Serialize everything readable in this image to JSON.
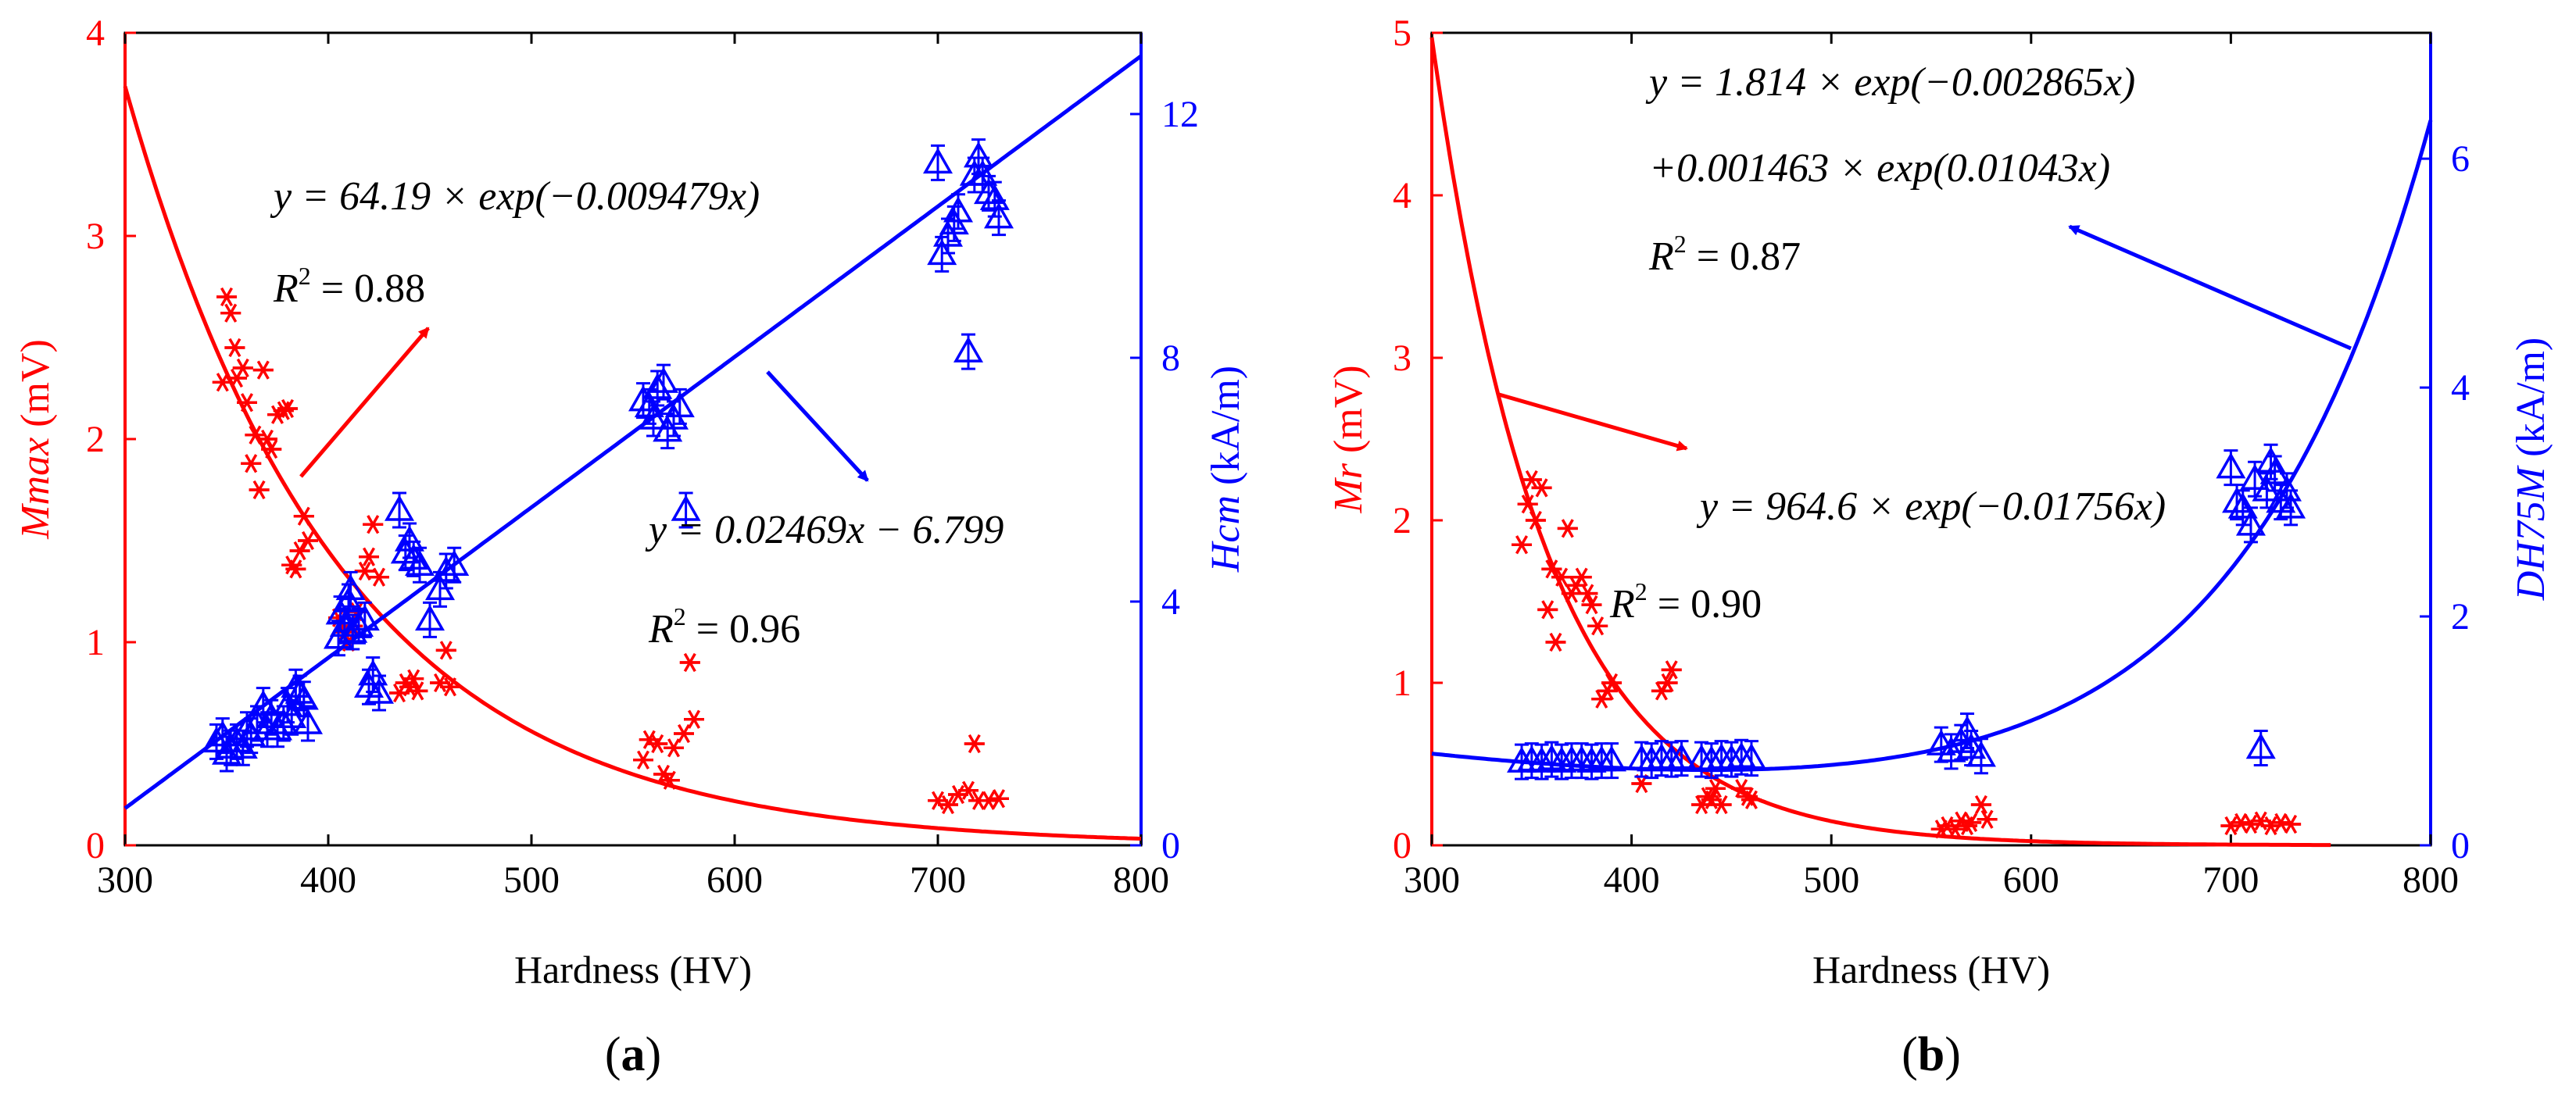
{
  "colors": {
    "red": "#ff0000",
    "blue": "#0000ff",
    "axis": "#000000"
  },
  "chart_data": [
    {
      "type": "scatter",
      "panel_label": {
        "open": "(",
        "letter": "a",
        "close": ")"
      },
      "xlabel": "Hardness (HV)",
      "ylabel_left": {
        "var": "Mmax",
        "unit": " (mV)"
      },
      "ylabel_right": {
        "var": "Hcm",
        "unit": " (kA/m)"
      },
      "xlim": [
        300,
        800
      ],
      "ylim_left": [
        0,
        4
      ],
      "ylim_right": [
        0,
        13.333
      ],
      "xticks": [
        "300",
        "400",
        "500",
        "600",
        "700",
        "800"
      ],
      "yticks_left": [
        "0",
        "1",
        "2",
        "3",
        "4"
      ],
      "yticks_right": [
        "0",
        "4",
        "8",
        "12"
      ],
      "series": [
        {
          "name": "Mmax",
          "axis": "left",
          "marker": "asterisk",
          "color": "#ff0000",
          "points": [
            [
              348,
              2.28
            ],
            [
              350,
              2.7
            ],
            [
              352,
              2.62
            ],
            [
              354,
              2.45
            ],
            [
              355,
              2.3
            ],
            [
              358,
              2.35
            ],
            [
              360,
              2.18
            ],
            [
              362,
              1.88
            ],
            [
              364,
              2.02
            ],
            [
              366,
              1.75
            ],
            [
              368,
              2.34
            ],
            [
              370,
              2.0
            ],
            [
              372,
              1.95
            ],
            [
              375,
              2.12
            ],
            [
              378,
              2.14
            ],
            [
              380,
              2.15
            ],
            [
              382,
              1.38
            ],
            [
              384,
              1.36
            ],
            [
              386,
              1.45
            ],
            [
              388,
              1.62
            ],
            [
              390,
              1.5
            ],
            [
              405,
              1.12
            ],
            [
              408,
              1.05
            ],
            [
              410,
              1.0
            ],
            [
              412,
              1.08
            ],
            [
              414,
              1.15
            ],
            [
              418,
              1.35
            ],
            [
              420,
              1.42
            ],
            [
              422,
              1.58
            ],
            [
              425,
              1.32
            ],
            [
              435,
              0.75
            ],
            [
              438,
              0.8
            ],
            [
              440,
              0.78
            ],
            [
              442,
              0.82
            ],
            [
              444,
              0.76
            ],
            [
              455,
              0.8
            ],
            [
              458,
              0.96
            ],
            [
              460,
              0.78
            ],
            [
              555,
              0.42
            ],
            [
              558,
              0.52
            ],
            [
              562,
              0.5
            ],
            [
              565,
              0.35
            ],
            [
              568,
              0.32
            ],
            [
              570,
              0.48
            ],
            [
              575,
              0.55
            ],
            [
              578,
              0.9
            ],
            [
              580,
              0.62
            ],
            [
              700,
              0.22
            ],
            [
              705,
              0.2
            ],
            [
              710,
              0.25
            ],
            [
              715,
              0.27
            ],
            [
              718,
              0.5
            ],
            [
              720,
              0.22
            ],
            [
              725,
              0.22
            ],
            [
              730,
              0.23
            ]
          ]
        },
        {
          "name": "Hcm",
          "axis": "right",
          "marker": "triangle",
          "color": "#0000ff",
          "points": [
            [
              345,
              1.7
            ],
            [
              348,
              1.8
            ],
            [
              350,
              1.5
            ],
            [
              352,
              1.6
            ],
            [
              355,
              1.7
            ],
            [
              358,
              1.6
            ],
            [
              360,
              1.9
            ],
            [
              362,
              1.8
            ],
            [
              365,
              2.0
            ],
            [
              368,
              2.3
            ],
            [
              370,
              1.9
            ],
            [
              372,
              2.1
            ],
            [
              375,
              1.9
            ],
            [
              378,
              2.0
            ],
            [
              380,
              2.3
            ],
            [
              382,
              2.1
            ],
            [
              384,
              2.6
            ],
            [
              386,
              2.5
            ],
            [
              388,
              2.4
            ],
            [
              390,
              2.0
            ],
            [
              405,
              3.4
            ],
            [
              406,
              3.8
            ],
            [
              408,
              3.6
            ],
            [
              410,
              4.0
            ],
            [
              411,
              4.2
            ],
            [
              412,
              3.5
            ],
            [
              415,
              3.6
            ],
            [
              418,
              3.7
            ],
            [
              420,
              2.6
            ],
            [
              422,
              2.8
            ],
            [
              425,
              2.5
            ],
            [
              435,
              5.5
            ],
            [
              438,
              4.8
            ],
            [
              440,
              5.0
            ],
            [
              442,
              4.7
            ],
            [
              445,
              4.6
            ],
            [
              450,
              3.7
            ],
            [
              455,
              4.2
            ],
            [
              458,
              4.5
            ],
            [
              462,
              4.6
            ],
            [
              555,
              7.3
            ],
            [
              558,
              7.2
            ],
            [
              560,
              7.0
            ],
            [
              562,
              7.5
            ],
            [
              565,
              7.6
            ],
            [
              567,
              6.8
            ],
            [
              570,
              7.0
            ],
            [
              573,
              7.2
            ],
            [
              576,
              5.5
            ],
            [
              700,
              11.2
            ],
            [
              702,
              9.7
            ],
            [
              705,
              10.0
            ],
            [
              708,
              10.2
            ],
            [
              710,
              10.4
            ],
            [
              715,
              8.1
            ],
            [
              718,
              11.0
            ],
            [
              720,
              11.3
            ],
            [
              722,
              11.0
            ],
            [
              725,
              10.7
            ],
            [
              728,
              10.6
            ],
            [
              730,
              10.3
            ]
          ]
        }
      ],
      "fits": [
        {
          "axis": "left",
          "color": "#ff0000",
          "model": "exp",
          "a": 64.19,
          "b": -0.009479,
          "x_range": [
            300,
            800
          ],
          "eq": "y = 64.19 × exp(−0.009479x)",
          "r2_prefix": "R",
          "r2_sup": "2",
          "r2_value": " = 0.88"
        },
        {
          "axis": "right",
          "color": "#0000ff",
          "model": "linear",
          "m": 0.02469,
          "c": -6.799,
          "x_range": [
            300,
            800
          ],
          "eq": "y = 0.02469x − 6.799",
          "r2_prefix": "R",
          "r2_sup": "2",
          "r2_value": " = 0.96"
        }
      ],
      "error_bars": "small vertical error bars on Hcm points"
    },
    {
      "type": "scatter",
      "panel_label": {
        "open": "(",
        "letter": "b",
        "close": ")"
      },
      "xlabel": "Hardness (HV)",
      "ylabel_left": {
        "var": "Mr",
        "unit": " (mV)"
      },
      "ylabel_right": {
        "var": "DH75M",
        "unit": " (kA/m)"
      },
      "xlim": [
        300,
        800
      ],
      "ylim_left": [
        0,
        5
      ],
      "ylim_right": [
        0,
        7.1
      ],
      "xticks": [
        "300",
        "400",
        "500",
        "600",
        "700",
        "800"
      ],
      "yticks_left": [
        "0",
        "1",
        "2",
        "3",
        "4",
        "5"
      ],
      "yticks_right": [
        "0",
        "2",
        "4",
        "6"
      ],
      "series": [
        {
          "name": "Mr",
          "axis": "left",
          "marker": "asterisk",
          "color": "#ff0000",
          "points": [
            [
              345,
              1.85
            ],
            [
              348,
              2.1
            ],
            [
              350,
              2.25
            ],
            [
              352,
              2.0
            ],
            [
              355,
              2.2
            ],
            [
              358,
              1.45
            ],
            [
              360,
              1.7
            ],
            [
              362,
              1.25
            ],
            [
              365,
              1.65
            ],
            [
              368,
              1.95
            ],
            [
              370,
              1.55
            ],
            [
              372,
              1.6
            ],
            [
              375,
              1.65
            ],
            [
              378,
              1.55
            ],
            [
              380,
              1.48
            ],
            [
              383,
              1.35
            ],
            [
              385,
              0.9
            ],
            [
              388,
              0.95
            ],
            [
              390,
              1.0
            ],
            [
              405,
              0.38
            ],
            [
              415,
              0.95
            ],
            [
              418,
              1.0
            ],
            [
              420,
              1.08
            ],
            [
              435,
              0.25
            ],
            [
              438,
              0.3
            ],
            [
              440,
              0.28
            ],
            [
              442,
              0.35
            ],
            [
              445,
              0.25
            ],
            [
              455,
              0.35
            ],
            [
              458,
              0.3
            ],
            [
              460,
              0.28
            ],
            [
              555,
              0.1
            ],
            [
              558,
              0.12
            ],
            [
              562,
              0.1
            ],
            [
              565,
              0.15
            ],
            [
              568,
              0.12
            ],
            [
              570,
              0.14
            ],
            [
              575,
              0.25
            ],
            [
              578,
              0.16
            ],
            [
              700,
              0.12
            ],
            [
              705,
              0.14
            ],
            [
              710,
              0.13
            ],
            [
              715,
              0.15
            ],
            [
              720,
              0.12
            ],
            [
              725,
              0.14
            ],
            [
              730,
              0.13
            ]
          ]
        },
        {
          "name": "DH75M",
          "axis": "right",
          "marker": "triangle",
          "color": "#0000ff",
          "points": [
            [
              345,
              0.73
            ],
            [
              350,
              0.74
            ],
            [
              355,
              0.73
            ],
            [
              360,
              0.75
            ],
            [
              365,
              0.73
            ],
            [
              370,
              0.74
            ],
            [
              375,
              0.74
            ],
            [
              380,
              0.73
            ],
            [
              385,
              0.74
            ],
            [
              390,
              0.74
            ],
            [
              405,
              0.75
            ],
            [
              410,
              0.74
            ],
            [
              415,
              0.76
            ],
            [
              420,
              0.75
            ],
            [
              425,
              0.76
            ],
            [
              435,
              0.75
            ],
            [
              440,
              0.74
            ],
            [
              445,
              0.76
            ],
            [
              450,
              0.75
            ],
            [
              455,
              0.77
            ],
            [
              460,
              0.76
            ],
            [
              555,
              0.88
            ],
            [
              560,
              0.82
            ],
            [
              565,
              0.9
            ],
            [
              568,
              1.0
            ],
            [
              570,
              0.85
            ],
            [
              575,
              0.78
            ],
            [
              700,
              3.3
            ],
            [
              703,
              3.0
            ],
            [
              706,
              2.95
            ],
            [
              710,
              2.8
            ],
            [
              712,
              3.2
            ],
            [
              715,
              0.85
            ],
            [
              718,
              3.1
            ],
            [
              720,
              3.35
            ],
            [
              722,
              3.25
            ],
            [
              725,
              3.0
            ],
            [
              728,
              3.1
            ],
            [
              730,
              2.95
            ]
          ]
        }
      ],
      "fits": [
        {
          "axis": "left",
          "color": "#ff0000",
          "model": "exp",
          "a": 964.6,
          "b": -0.01756,
          "x_range": [
            300,
            750
          ],
          "eq": "y = 964.6 × exp(−0.01756x)",
          "r2_prefix": "R",
          "r2_sup": "2",
          "r2_value": " = 0.90"
        },
        {
          "axis": "right",
          "color": "#0000ff",
          "model": "double_exp",
          "a1": 1.814,
          "b1": -0.002865,
          "a2": 0.001463,
          "b2": 0.01043,
          "x_range": [
            300,
            800
          ],
          "eq": "y = 1.814 × exp(−0.002865x)",
          "eq2": "+0.001463 × exp(0.01043x)",
          "r2_prefix": "R",
          "r2_sup": "2",
          "r2_value": " = 0.87"
        }
      ],
      "error_bars": "small vertical error bars on DH75M points"
    }
  ]
}
